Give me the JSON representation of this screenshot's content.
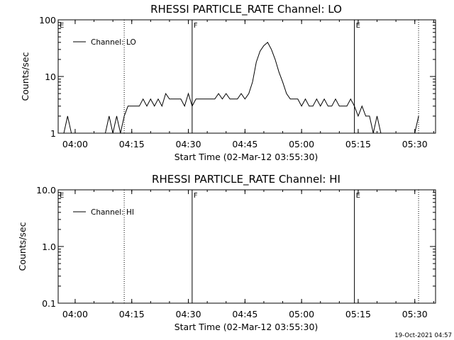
{
  "timestamp": "19-Oct-2021 04:57",
  "chart_data": [
    {
      "type": "line",
      "title": "RHESSI PARTICLE_RATE Channel: LO",
      "xlabel": "Start Time (02-Mar-12 03:55:30)",
      "ylabel": "Counts/sec",
      "yscale": "log",
      "ylim": [
        1,
        100
      ],
      "xlim": [
        "03:55:30",
        "05:35:30"
      ],
      "xticks": [
        "04:00",
        "04:15",
        "04:30",
        "04:45",
        "05:00",
        "05:15",
        "05:30"
      ],
      "yticks": [
        "1",
        "10",
        "100"
      ],
      "legend": "top-left",
      "series": [
        {
          "name": "Channel: LO",
          "x": [
            "03:57",
            "03:58",
            "03:59",
            "04:02",
            "04:08",
            "04:09",
            "04:10",
            "04:11",
            "04:12",
            "04:13",
            "04:14",
            "04:15",
            "04:17",
            "04:18",
            "04:19",
            "04:20",
            "04:21",
            "04:22",
            "04:23",
            "04:24",
            "04:25",
            "04:27",
            "04:28",
            "04:29",
            "04:30",
            "04:31",
            "04:32",
            "04:33",
            "04:35",
            "04:37",
            "04:38",
            "04:39",
            "04:40",
            "04:41",
            "04:42",
            "04:43",
            "04:44",
            "04:45",
            "04:46",
            "04:47",
            "04:48",
            "04:49",
            "04:50",
            "04:51",
            "04:52",
            "04:53",
            "04:54",
            "04:55",
            "04:56",
            "04:57",
            "04:58",
            "04:59",
            "05:00",
            "05:01",
            "05:02",
            "05:03",
            "05:04",
            "05:05",
            "05:06",
            "05:07",
            "05:08",
            "05:09",
            "05:10",
            "05:11",
            "05:12",
            "05:13",
            "05:14",
            "05:15",
            "05:16",
            "05:17",
            "05:18",
            "05:19",
            "05:20",
            "05:21",
            "05:25",
            "05:30",
            "05:31"
          ],
          "values": [
            1,
            2,
            1,
            1,
            1,
            2,
            1,
            2,
            1,
            2,
            3,
            3,
            3,
            4,
            3,
            4,
            3,
            4,
            3,
            5,
            4,
            4,
            4,
            3,
            5,
            3,
            4,
            4,
            4,
            4,
            5,
            4,
            5,
            4,
            4,
            4,
            5,
            4,
            5,
            8,
            18,
            28,
            35,
            40,
            30,
            20,
            12,
            8,
            5,
            4,
            4,
            4,
            3,
            4,
            3,
            3,
            4,
            3,
            4,
            3,
            3,
            4,
            3,
            3,
            3,
            4,
            3,
            2,
            3,
            2,
            2,
            1,
            2,
            1,
            1,
            1,
            2
          ]
        }
      ],
      "markers": [
        {
          "label": "E",
          "time": "03:55:30",
          "style": "dotted"
        },
        {
          "label": "",
          "time": "04:13:00",
          "style": "dotted"
        },
        {
          "label": "F",
          "time": "04:31:00",
          "style": "solid"
        },
        {
          "label": "E",
          "time": "05:14:00",
          "style": "solid"
        },
        {
          "label": "",
          "time": "05:31:00",
          "style": "dotted"
        }
      ]
    },
    {
      "type": "line",
      "title": "RHESSI PARTICLE_RATE Channel: HI",
      "xlabel": "Start Time (02-Mar-12 03:55:30)",
      "ylabel": "Counts/sec",
      "yscale": "log",
      "ylim": [
        0.1,
        10
      ],
      "xlim": [
        "03:55:30",
        "05:35:30"
      ],
      "xticks": [
        "04:00",
        "04:15",
        "04:30",
        "04:45",
        "05:00",
        "05:15",
        "05:30"
      ],
      "yticks": [
        "0.1",
        "1.0",
        "10.0"
      ],
      "legend": "top-left",
      "series": [
        {
          "name": "Channel: HI",
          "x": [],
          "values": []
        }
      ],
      "markers": [
        {
          "label": "E",
          "time": "03:55:30",
          "style": "dotted"
        },
        {
          "label": "",
          "time": "04:13:00",
          "style": "dotted"
        },
        {
          "label": "F",
          "time": "04:31:00",
          "style": "solid"
        },
        {
          "label": "E",
          "time": "05:14:00",
          "style": "solid"
        },
        {
          "label": "",
          "time": "05:31:00",
          "style": "dotted"
        }
      ]
    }
  ]
}
